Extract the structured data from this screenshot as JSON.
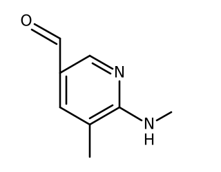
{
  "atoms": {
    "oxygen": "O",
    "ring_nitrogen": "N",
    "amine_nitrogen": "N",
    "amine_hydrogen": "H"
  }
}
